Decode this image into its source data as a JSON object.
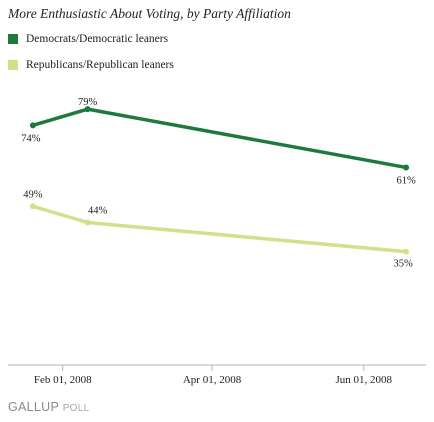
{
  "chart_data": {
    "type": "line",
    "title": "More Enthusiastic About Voting, by Party Affiliation",
    "xlabel": "",
    "ylabel": "",
    "x_ticks": [
      "Feb 01, 2008",
      "Apr 01, 2008",
      "Jun 01, 2008"
    ],
    "xlim": [
      "2008-01-10",
      "2008-06-26"
    ],
    "ylim": [
      0,
      88
    ],
    "grid": false,
    "legend_position": "top-left",
    "series": [
      {
        "name": "Democrats/Democratic leaners",
        "color": "#1e7a3c",
        "points": [
          {
            "x": "2008-01-20",
            "y": 74,
            "label": "74%"
          },
          {
            "x": "2008-02-11",
            "y": 79,
            "label": "79%"
          },
          {
            "x": "2008-06-18",
            "y": 61,
            "label": "61%"
          }
        ]
      },
      {
        "name": "Republicans/Republican leaners",
        "color": "#cfe28a",
        "points": [
          {
            "x": "2008-01-20",
            "y": 49,
            "label": "49%"
          },
          {
            "x": "2008-02-11",
            "y": 44,
            "label": "44%"
          },
          {
            "x": "2008-06-18",
            "y": 35,
            "label": "35%"
          }
        ]
      }
    ]
  },
  "footer": {
    "brand": "GALLUP",
    "suffix": "POLL"
  }
}
